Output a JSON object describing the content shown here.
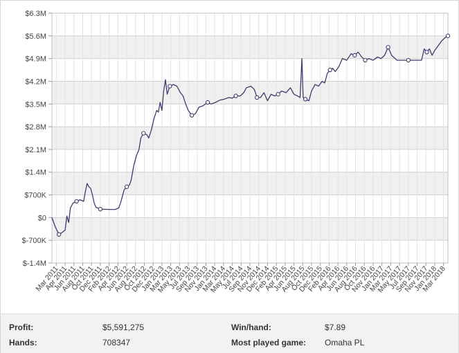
{
  "chart_data": {
    "type": "line",
    "y_ticks": [
      "$6.3M",
      "$5.6M",
      "$4.9M",
      "$4.2M",
      "$3.5M",
      "$2.8M",
      "$2.1M",
      "$1.4M",
      "$700K",
      "$0",
      "$-700K",
      "$-1.4M"
    ],
    "y_tick_values": [
      6300000,
      5600000,
      4900000,
      4200000,
      3500000,
      2800000,
      2100000,
      1400000,
      700000,
      0,
      -700000,
      -1400000
    ],
    "ylim": [
      -1400000,
      6300000
    ],
    "x_ticks": [
      "Mar 2011",
      "Apr 2011",
      "Jun 2011",
      "Aug 2011",
      "Oct 2011",
      "Dec 2011",
      "Feb 2012",
      "Apr 2012",
      "Jun 2012",
      "Aug 2012",
      "Oct 2012",
      "Dec 2012",
      "Jan 2013",
      "Mar 2013",
      "May 2013",
      "Jul 2013",
      "Sep 2013",
      "Nov 2013",
      "Jan 2014",
      "Mar 2014",
      "May 2014",
      "Jul 2014",
      "Sep 2014",
      "Nov 2014",
      "Dec 2014",
      "Feb 2015",
      "Apr 2015",
      "Jun 2015",
      "Aug 2015",
      "Oct 2015",
      "Dec 2015",
      "Feb 2016",
      "Apr 2016",
      "Jun 2016",
      "Aug 2016",
      "Oct 2016",
      "Nov 2016",
      "Jan 2017",
      "Mar 2017",
      "May 2017",
      "Jul 2017",
      "Sep 2017",
      "Nov 2017",
      "Jan 2018",
      "Mar 2018"
    ],
    "grid": true,
    "series": [
      {
        "values": [
          [
            0,
            0
          ],
          [
            0.4,
            -300000
          ],
          [
            0.8,
            -520000
          ],
          [
            1.2,
            -450000
          ],
          [
            1.5,
            -380000
          ],
          [
            1.7,
            50000
          ],
          [
            1.9,
            -150000
          ],
          [
            2.1,
            300000
          ],
          [
            2.4,
            450000
          ],
          [
            2.8,
            500000
          ],
          [
            3.2,
            550000
          ],
          [
            3.6,
            500000
          ],
          [
            3.8,
            800000
          ],
          [
            4.0,
            1050000
          ],
          [
            4.2,
            950000
          ],
          [
            4.4,
            900000
          ],
          [
            4.6,
            700000
          ],
          [
            4.8,
            450000
          ],
          [
            5.0,
            320000
          ],
          [
            5.5,
            260000
          ],
          [
            6.5,
            250000
          ],
          [
            7.2,
            250000
          ],
          [
            7.6,
            300000
          ],
          [
            7.8,
            450000
          ],
          [
            8.0,
            650000
          ],
          [
            8.2,
            850000
          ],
          [
            8.5,
            950000
          ],
          [
            8.8,
            1000000
          ],
          [
            9.0,
            1150000
          ],
          [
            9.3,
            1600000
          ],
          [
            9.6,
            1900000
          ],
          [
            9.9,
            2100000
          ],
          [
            10.1,
            2450000
          ],
          [
            10.4,
            2600000
          ],
          [
            10.8,
            2550000
          ],
          [
            11.0,
            2450000
          ],
          [
            11.3,
            2700000
          ],
          [
            11.6,
            3050000
          ],
          [
            11.9,
            3300000
          ],
          [
            12.1,
            3250000
          ],
          [
            12.3,
            3550000
          ],
          [
            12.5,
            3300000
          ],
          [
            12.7,
            3900000
          ],
          [
            12.9,
            4250000
          ],
          [
            13.1,
            3800000
          ],
          [
            13.4,
            4050000
          ],
          [
            13.8,
            4100000
          ],
          [
            14.2,
            4050000
          ],
          [
            14.6,
            3850000
          ],
          [
            14.9,
            3750000
          ],
          [
            15.2,
            3500000
          ],
          [
            15.5,
            3300000
          ],
          [
            15.9,
            3150000
          ],
          [
            16.3,
            3200000
          ],
          [
            16.7,
            3400000
          ],
          [
            17.2,
            3450000
          ],
          [
            17.7,
            3550000
          ],
          [
            18.1,
            3500000
          ],
          [
            18.6,
            3550000
          ],
          [
            19.1,
            3620000
          ],
          [
            19.6,
            3650000
          ],
          [
            20.1,
            3700000
          ],
          [
            20.5,
            3680000
          ],
          [
            20.9,
            3750000
          ],
          [
            21.4,
            3750000
          ],
          [
            21.8,
            3850000
          ],
          [
            22.1,
            4000000
          ],
          [
            22.6,
            4050000
          ],
          [
            23.0,
            3950000
          ],
          [
            23.3,
            3700000
          ],
          [
            23.7,
            3700000
          ],
          [
            24.1,
            3850000
          ],
          [
            24.5,
            3600000
          ],
          [
            24.9,
            3800000
          ],
          [
            25.3,
            3750000
          ],
          [
            25.7,
            3800000
          ],
          [
            26.1,
            3900000
          ],
          [
            26.6,
            3850000
          ],
          [
            27.1,
            4000000
          ],
          [
            27.5,
            3800000
          ],
          [
            27.9,
            3750000
          ],
          [
            28.2,
            3700000
          ],
          [
            28.4,
            4900000
          ],
          [
            28.55,
            3700000
          ],
          [
            28.8,
            3650000
          ],
          [
            29.2,
            3600000
          ],
          [
            29.5,
            3900000
          ],
          [
            29.9,
            4100000
          ],
          [
            30.3,
            4050000
          ],
          [
            30.7,
            4200000
          ],
          [
            31.0,
            4150000
          ],
          [
            31.3,
            4450000
          ],
          [
            31.6,
            4550000
          ],
          [
            31.9,
            4600000
          ],
          [
            32.2,
            4500000
          ],
          [
            32.6,
            4650000
          ],
          [
            33.0,
            4900000
          ],
          [
            33.5,
            4850000
          ],
          [
            34.0,
            5050000
          ],
          [
            34.4,
            5000000
          ],
          [
            34.8,
            5100000
          ],
          [
            35.2,
            4950000
          ],
          [
            35.6,
            4850000
          ],
          [
            36.0,
            4900000
          ],
          [
            36.5,
            4850000
          ],
          [
            37.0,
            4950000
          ],
          [
            37.4,
            4900000
          ],
          [
            37.8,
            5000000
          ],
          [
            38.2,
            5250000
          ],
          [
            38.6,
            5000000
          ],
          [
            39.2,
            4850000
          ],
          [
            40.5,
            4850000
          ],
          [
            41.2,
            4850000
          ],
          [
            42.0,
            4850000
          ],
          [
            42.3,
            5200000
          ],
          [
            42.6,
            5100000
          ],
          [
            42.9,
            5200000
          ],
          [
            43.2,
            5000000
          ],
          [
            43.5,
            5150000
          ],
          [
            43.9,
            5300000
          ],
          [
            44.3,
            5450000
          ],
          [
            44.7,
            5550000
          ],
          [
            45.0,
            5600000
          ]
        ],
        "markers": [
          [
            0.8,
            -520000
          ],
          [
            2.8,
            500000
          ],
          [
            5.5,
            260000
          ],
          [
            8.5,
            950000
          ],
          [
            10.4,
            2600000
          ],
          [
            13.4,
            4050000
          ],
          [
            15.9,
            3150000
          ],
          [
            17.7,
            3550000
          ],
          [
            20.9,
            3750000
          ],
          [
            23.3,
            3700000
          ],
          [
            25.7,
            3800000
          ],
          [
            28.8,
            3650000
          ],
          [
            31.6,
            4550000
          ],
          [
            34.4,
            5000000
          ],
          [
            35.6,
            4850000
          ],
          [
            38.2,
            5250000
          ],
          [
            40.5,
            4850000
          ],
          [
            42.6,
            5100000
          ],
          [
            45.0,
            5600000
          ]
        ],
        "color": "#3d3d6b"
      }
    ]
  },
  "stats": {
    "profit_label": "Profit:",
    "profit_value": "$5,591,275",
    "hands_label": "Hands:",
    "hands_value": "708347",
    "win_hand_label": "Win/hand:",
    "win_hand_value": "$7.89",
    "most_played_label": "Most played game:",
    "most_played_value": "Omaha PL"
  },
  "colors": {
    "line": "#3d3d6b",
    "band": "#f0f0f0",
    "grid": "#cfcfcf",
    "axis_text": "#444444"
  }
}
